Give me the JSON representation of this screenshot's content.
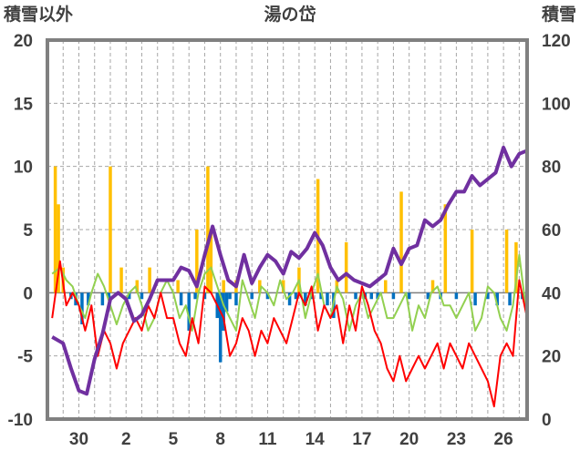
{
  "chart_data": {
    "type": "line",
    "title": "湯の岱",
    "y_left_label": "積雪以外",
    "y_right_label": "積雪",
    "y_left_range": [
      -10,
      20
    ],
    "y_right_range": [
      0,
      120
    ],
    "y_left_ticks": [
      "20",
      "15",
      "10",
      "5",
      "0",
      "-5",
      "-10"
    ],
    "y_right_ticks": [
      "120",
      "100",
      "80",
      "60",
      "40",
      "20",
      "0"
    ],
    "x_ticks": [
      "30",
      "2",
      "5",
      "8",
      "11",
      "14",
      "17",
      "20",
      "23",
      "26"
    ],
    "x_tick_pos": [
      2,
      5,
      8,
      11,
      14,
      17,
      20,
      23,
      26,
      29
    ],
    "x_range": [
      0,
      30.5
    ],
    "grid": true,
    "colors": {
      "snow_depth": "#7030a0",
      "temp_max": "#92d050",
      "temp_min": "#ff0000",
      "precip": "#ffc000",
      "snow_change": "#0070c0",
      "frame": "#808080"
    },
    "series": [
      {
        "key": "snow_depth",
        "axis": "right",
        "kind": "line",
        "x": [
          0.3,
          1.0,
          1.5,
          2.0,
          2.5,
          3.0,
          3.5,
          4.0,
          4.5,
          5.0,
          5.5,
          6.0,
          6.5,
          7.0,
          7.5,
          8.0,
          8.5,
          9.0,
          9.5,
          10.0,
          10.5,
          11.0,
          11.5,
          12.0,
          12.5,
          13.0,
          13.5,
          14.0,
          14.5,
          15.0,
          15.5,
          16.0,
          16.5,
          17.0,
          17.5,
          18.0,
          18.5,
          19.0,
          19.5,
          20.0,
          20.5,
          21.0,
          21.5,
          22.0,
          22.5,
          23.0,
          23.5,
          24.0,
          24.5,
          25.0,
          25.5,
          26.0,
          26.5,
          27.0,
          27.5,
          28.0,
          28.5,
          29.0,
          29.5,
          30.0,
          30.5
        ],
        "values": [
          26,
          24,
          16,
          9,
          8,
          19,
          27,
          38,
          40,
          38,
          31,
          33,
          38,
          44,
          44,
          44,
          48,
          47,
          42,
          52,
          61,
          52,
          44,
          42,
          52,
          43,
          48,
          52,
          50,
          46,
          53,
          51,
          54,
          59,
          55,
          48,
          44,
          46,
          44,
          43,
          42,
          44,
          46,
          54,
          49,
          54,
          55,
          63,
          61,
          63,
          68,
          72,
          72,
          77,
          74,
          76,
          78,
          86,
          80,
          84,
          85
        ]
      },
      {
        "key": "temp_max",
        "axis": "left",
        "kind": "line",
        "x": [
          0.3,
          0.8,
          1.2,
          1.6,
          2.0,
          2.4,
          2.8,
          3.2,
          3.6,
          4.0,
          4.4,
          4.8,
          5.2,
          5.6,
          6.0,
          6.4,
          6.8,
          7.2,
          7.6,
          8.0,
          8.4,
          8.8,
          9.2,
          9.6,
          10.0,
          10.4,
          10.8,
          11.2,
          11.6,
          12.0,
          12.4,
          12.8,
          13.2,
          13.6,
          14.0,
          14.4,
          14.8,
          15.2,
          15.6,
          16.0,
          16.4,
          16.8,
          17.2,
          17.6,
          18.0,
          18.4,
          18.8,
          19.2,
          19.6,
          20.0,
          20.4,
          20.8,
          21.2,
          21.6,
          22.0,
          22.4,
          22.8,
          23.2,
          23.6,
          24.0,
          24.4,
          24.8,
          25.2,
          25.6,
          26.0,
          26.4,
          26.8,
          27.2,
          27.6,
          28.0,
          28.4,
          28.8,
          29.2,
          29.6,
          30.0,
          30.5
        ],
        "values": [
          1.5,
          2,
          1,
          0.5,
          -1,
          -2,
          0,
          1.5,
          0.5,
          -1,
          -2.5,
          -1,
          0,
          0.5,
          -1,
          -3,
          -2,
          0,
          1,
          0,
          -2,
          -1,
          -3,
          0,
          1.5,
          2,
          0.5,
          -1,
          -2,
          -3,
          1,
          -0.5,
          -2,
          0.5,
          0,
          -1,
          1,
          -0.5,
          0,
          1,
          -2,
          0,
          1.5,
          -1,
          -2,
          0.5,
          -0.5,
          -3,
          -1,
          0,
          -2,
          -1,
          0,
          -2,
          -2,
          -1,
          0,
          -3,
          -1,
          -2,
          0,
          0.5,
          -1,
          -1,
          -2,
          -1,
          0,
          -3,
          -2,
          0.5,
          0,
          -2,
          -3,
          -1,
          3,
          -2
        ]
      },
      {
        "key": "temp_min",
        "axis": "left",
        "kind": "line",
        "x": [
          0.3,
          0.8,
          1.2,
          1.6,
          2.0,
          2.4,
          2.8,
          3.2,
          3.6,
          4.0,
          4.4,
          4.8,
          5.2,
          5.6,
          6.0,
          6.4,
          6.8,
          7.2,
          7.6,
          8.0,
          8.4,
          8.8,
          9.2,
          9.6,
          10.0,
          10.4,
          10.8,
          11.2,
          11.6,
          12.0,
          12.4,
          12.8,
          13.2,
          13.6,
          14.0,
          14.4,
          14.8,
          15.2,
          15.6,
          16.0,
          16.4,
          16.8,
          17.2,
          17.6,
          18.0,
          18.4,
          18.8,
          19.2,
          19.6,
          20.0,
          20.4,
          20.8,
          21.2,
          21.6,
          22.0,
          22.4,
          22.8,
          23.2,
          23.6,
          24.0,
          24.4,
          24.8,
          25.2,
          25.6,
          26.0,
          26.4,
          26.8,
          27.2,
          27.6,
          28.0,
          28.4,
          28.8,
          29.2,
          29.6,
          30.0,
          30.5
        ],
        "values": [
          -2,
          2.5,
          -1,
          0,
          -1,
          -3,
          -1,
          -5,
          -3,
          -4,
          -6,
          -4,
          -3,
          -2,
          -3,
          -1,
          -2,
          0,
          -2,
          -2,
          -4,
          -5,
          -2,
          -4,
          0.5,
          0,
          -1,
          -2,
          -5,
          -4,
          -2,
          -3,
          -5,
          -3,
          -4,
          -2,
          -3,
          -4,
          -2,
          0,
          -1,
          0.5,
          -3,
          -1,
          -2,
          -1,
          -4,
          -1,
          -3,
          0.5,
          -1,
          -3,
          -4,
          -6,
          -7,
          -5,
          -7,
          -6,
          -5,
          -6,
          -5,
          -4,
          -6,
          -4,
          -5,
          -6,
          -4,
          -5,
          -6,
          -7,
          -9,
          -5,
          -4,
          -5,
          1,
          -2
        ]
      },
      {
        "key": "precip",
        "axis": "left",
        "kind": "bar",
        "x": [
          0.5,
          0.7,
          1.0,
          4.0,
          4.7,
          5.7,
          6.5,
          8.3,
          9.5,
          10.2,
          10.4,
          11.2,
          12.0,
          13.5,
          15.0,
          16.0,
          17.2,
          18.4,
          19.0,
          21.5,
          22.5,
          24.5,
          25.3,
          27.0,
          29.2,
          29.8
        ],
        "values": [
          10,
          7,
          2,
          10,
          2,
          1,
          2,
          1,
          5,
          10,
          5,
          1,
          1,
          1,
          1,
          2,
          9,
          1,
          4,
          1,
          8,
          1,
          7,
          5,
          5,
          4
        ]
      },
      {
        "key": "snow_change",
        "axis": "left",
        "kind": "bar",
        "x": [
          1.5,
          1.8,
          2.2,
          2.6,
          3.5,
          3.9,
          5.2,
          6.0,
          8.5,
          9.0,
          9.4,
          10.0,
          10.8,
          11.0,
          11.2,
          11.4,
          11.6,
          12.0,
          13.0,
          14.0,
          15.4,
          15.8,
          16.4,
          16.8,
          17.4,
          17.8,
          18.2,
          19.6,
          20.2,
          20.6,
          21.0,
          22.0,
          23.0,
          24.2,
          25.0,
          26.0,
          27.2,
          28.0,
          28.6,
          29.4,
          30.2
        ],
        "values": [
          -0.5,
          -1,
          -2.5,
          -1,
          -1,
          -0.5,
          -0.5,
          -0.5,
          -1,
          -3,
          -0.5,
          -0.5,
          -2,
          -5.5,
          -3,
          -1.5,
          -0.5,
          -1,
          -0.5,
          -0.5,
          -1,
          -0.5,
          -1,
          -0.5,
          -0.5,
          -1,
          -2,
          -0.5,
          -0.5,
          -0.5,
          -0.5,
          -0.5,
          -0.5,
          -0.5,
          -0.5,
          -0.5,
          -1,
          -0.5,
          -1,
          -1,
          -0.5
        ]
      }
    ]
  }
}
